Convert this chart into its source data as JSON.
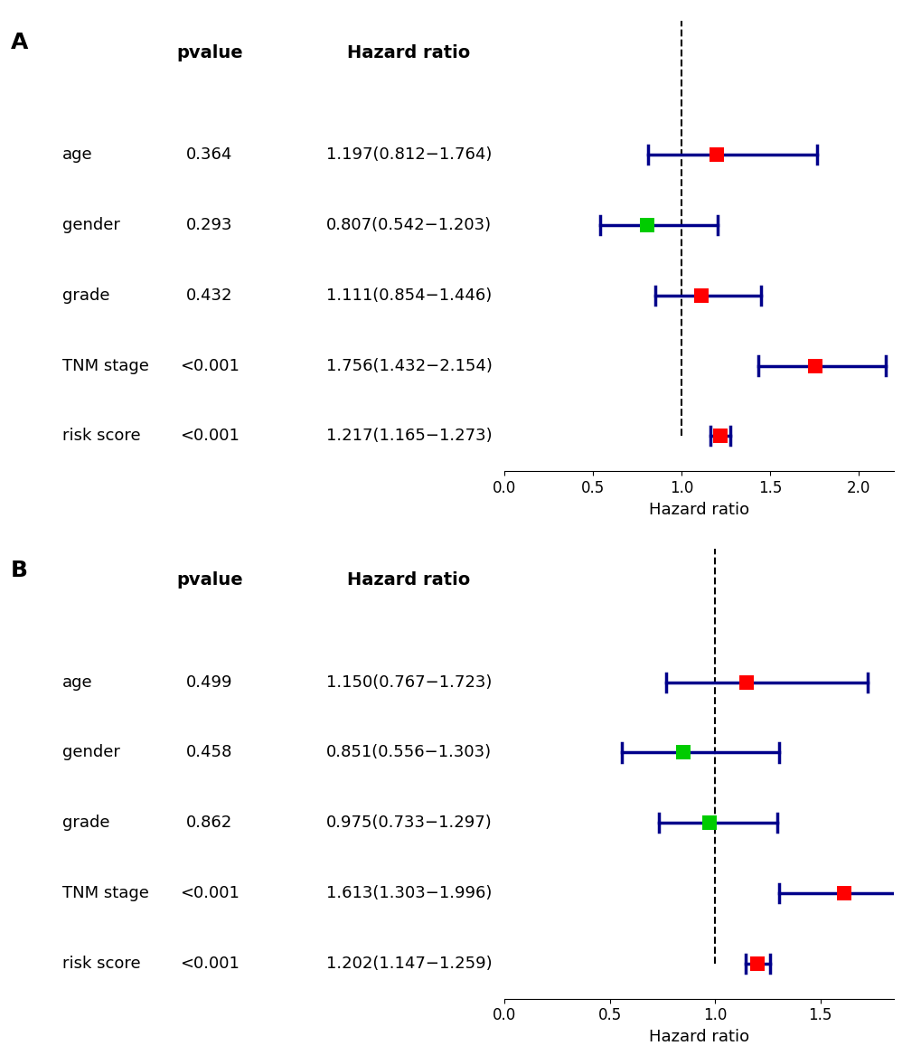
{
  "panel_A": {
    "label": "A",
    "variables": [
      "age",
      "gender",
      "grade",
      "TNM stage",
      "risk score"
    ],
    "pvalues": [
      "0.364",
      "0.293",
      "0.432",
      "<0.001",
      "<0.001"
    ],
    "hr_labels": [
      "1.197(0.812−1.764)",
      "0.807(0.542−1.203)",
      "1.111(0.854−1.446)",
      "1.756(1.432−2.154)",
      "1.217(1.165−1.273)"
    ],
    "hr": [
      1.197,
      0.807,
      1.111,
      1.756,
      1.217
    ],
    "ci_low": [
      0.812,
      0.542,
      0.854,
      1.432,
      1.165
    ],
    "ci_high": [
      1.764,
      1.203,
      1.446,
      2.154,
      1.273
    ],
    "colors": [
      "#ff0000",
      "#00cc00",
      "#ff0000",
      "#ff0000",
      "#ff0000"
    ],
    "xlim": [
      0.0,
      2.2
    ],
    "xticks": [
      0.0,
      0.5,
      1.0,
      1.5,
      2.0
    ],
    "xticklabels": [
      "0.0",
      "0.5",
      "1.0",
      "1.5",
      "2.0"
    ],
    "xlabel": "Hazard ratio",
    "vline": 1.0
  },
  "panel_B": {
    "label": "B",
    "variables": [
      "age",
      "gender",
      "grade",
      "TNM stage",
      "risk score"
    ],
    "pvalues": [
      "0.499",
      "0.458",
      "0.862",
      "<0.001",
      "<0.001"
    ],
    "hr_labels": [
      "1.150(0.767−1.723)",
      "0.851(0.556−1.303)",
      "0.975(0.733−1.297)",
      "1.613(1.303−1.996)",
      "1.202(1.147−1.259)"
    ],
    "hr": [
      1.15,
      0.851,
      0.975,
      1.613,
      1.202
    ],
    "ci_low": [
      0.767,
      0.556,
      0.733,
      1.303,
      1.147
    ],
    "ci_high": [
      1.723,
      1.303,
      1.297,
      1.996,
      1.259
    ],
    "colors": [
      "#ff0000",
      "#00cc00",
      "#00cc00",
      "#ff0000",
      "#ff0000"
    ],
    "xlim": [
      0.0,
      1.85
    ],
    "xticks": [
      0.0,
      0.5,
      1.0,
      1.5
    ],
    "xticklabels": [
      "0.0",
      "0.5",
      "1.0",
      "1.5"
    ],
    "xlabel": "Hazard ratio",
    "vline": 1.0
  },
  "line_color": "#00008B",
  "marker_size": 130,
  "lw": 2.5,
  "background_color": "#ffffff",
  "font_size_var": 13,
  "font_size_header": 14,
  "font_size_axis": 12,
  "font_size_panel_label": 18,
  "font_size_xlabel": 13
}
